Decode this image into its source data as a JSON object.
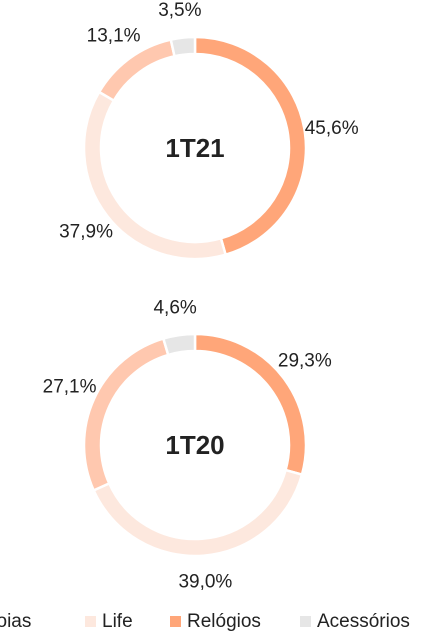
{
  "chart_data": [
    {
      "type": "pie",
      "title": "1T21",
      "categories": [
        "Joias",
        "Life",
        "Relógios",
        "Acessórios"
      ],
      "colors": [
        "#FFC8AF",
        "#FDE8DE",
        "#FFA679",
        "#E6E6E6"
      ],
      "values": [
        13.1,
        37.9,
        45.6,
        3.5
      ],
      "value_labels": [
        "13,1%",
        "37,9%",
        "45,6%",
        "3,5%"
      ],
      "legend": "bottom"
    },
    {
      "type": "pie",
      "title": "1T20",
      "categories": [
        "Joias",
        "Life",
        "Relógios",
        "Acessórios"
      ],
      "colors": [
        "#FFC8AF",
        "#FDE8DE",
        "#FFA679",
        "#E6E6E6"
      ],
      "values": [
        27.1,
        39.0,
        29.3,
        4.6
      ],
      "value_labels": [
        "27,1%",
        "39,0%",
        "29,3%",
        "4,6%"
      ]
    }
  ]
}
